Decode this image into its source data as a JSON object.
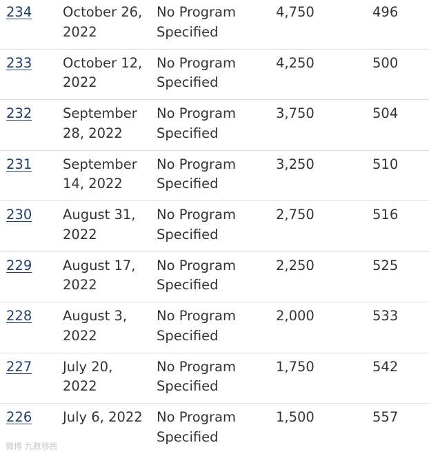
{
  "rows": [
    {
      "number": "234",
      "date": "October 26, 2022",
      "program": "No Program Specified",
      "crs_score": "4,750",
      "invitations": "496"
    },
    {
      "number": "233",
      "date": "October 12, 2022",
      "program": "No Program Specified",
      "crs_score": "4,250",
      "invitations": "500"
    },
    {
      "number": "232",
      "date": "September 28, 2022",
      "program": "No Program Specified",
      "crs_score": "3,750",
      "invitations": "504"
    },
    {
      "number": "231",
      "date": "September 14, 2022",
      "program": "No Program Specified",
      "crs_score": "3,250",
      "invitations": "510"
    },
    {
      "number": "230",
      "date": "August 31, 2022",
      "program": "No Program Specified",
      "crs_score": "2,750",
      "invitations": "516"
    },
    {
      "number": "229",
      "date": "August 17, 2022",
      "program": "No Program Specified",
      "crs_score": "2,250",
      "invitations": "525"
    },
    {
      "number": "228",
      "date": "August 3, 2022",
      "program": "No Program Specified",
      "crs_score": "2,000",
      "invitations": "533"
    },
    {
      "number": "227",
      "date": "July 20, 2022",
      "program": "No Program Specified",
      "crs_score": "1,750",
      "invitations": "542"
    },
    {
      "number": "226",
      "date": "July 6, 2022",
      "program": "No Program Specified",
      "crs_score": "1,500",
      "invitations": "557"
    }
  ],
  "watermark": "微博 九数移民"
}
